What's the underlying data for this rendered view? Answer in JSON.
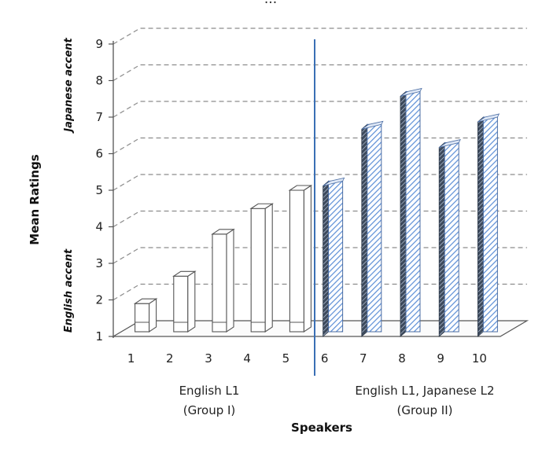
{
  "top_text": "...",
  "chart_data": {
    "type": "bar",
    "title": "",
    "xlabel": "Speakers",
    "ylabel": "Mean Ratings",
    "ylim": [
      1,
      9
    ],
    "yticks": [
      1,
      2,
      3,
      4,
      5,
      6,
      7,
      8,
      9
    ],
    "categories": [
      "1",
      "2",
      "3",
      "4",
      "5",
      "6",
      "7",
      "8",
      "9",
      "10"
    ],
    "values": [
      1.9,
      2.65,
      3.8,
      4.5,
      5.0,
      5.25,
      6.8,
      7.7,
      6.3,
      7.0
    ],
    "y_end_labels": {
      "low": "English accent",
      "high": "Japanese accent"
    },
    "groups": [
      {
        "line1": "English L1",
        "line2": "(Group I)",
        "categories": [
          "1",
          "2",
          "3",
          "4",
          "5"
        ]
      },
      {
        "line1": "English L1, Japanese L2",
        "line2": "(Group II)",
        "categories": [
          "6",
          "7",
          "8",
          "9",
          "10"
        ]
      }
    ],
    "grid": true,
    "colors": {
      "group1_fill": "#ffffff",
      "group2_hatch": "#5b8ed6",
      "divider": "#3a6fb5",
      "grid": "#8c8c8c",
      "outline": "#555555"
    }
  }
}
